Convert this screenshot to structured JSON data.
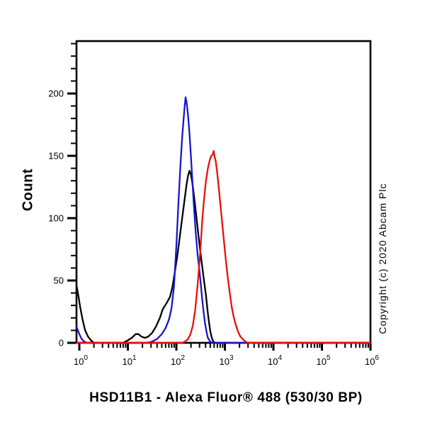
{
  "figure": {
    "background": "#ffffff"
  },
  "chart_data": {
    "type": "line",
    "subtype": "flow-cytometry-histogram-overlay",
    "title": "HSD11B1 - Alexa Fluor® 488 (530/30 BP)",
    "ylabel": "Count",
    "copyright": "Copyright (c) 2020 Abcam Plc",
    "grid": false,
    "legend": null,
    "x_axis": {
      "scale": "log10",
      "tick_base": "10",
      "tick_exponents": [
        0,
        1,
        2,
        3,
        4,
        5,
        6
      ],
      "minor_tick_multiples": [
        2,
        3,
        4,
        5,
        6,
        7,
        8,
        9
      ],
      "xlim_log10": [
        -0.058,
        6
      ]
    },
    "y_axis": {
      "ticks_major": [
        0,
        50,
        100,
        150,
        200
      ],
      "minor_step": 10,
      "ylim": [
        0,
        242
      ]
    },
    "series": [
      {
        "name": "black",
        "color": "#000000",
        "points_log10x_count": [
          [
            -0.058,
            46
          ],
          [
            -0.02,
            38
          ],
          [
            0.02,
            28
          ],
          [
            0.07,
            18
          ],
          [
            0.12,
            10
          ],
          [
            0.18,
            5
          ],
          [
            0.24,
            2
          ],
          [
            0.3,
            0
          ],
          [
            0.9,
            0
          ],
          [
            1.0,
            2
          ],
          [
            1.08,
            4
          ],
          [
            1.16,
            7
          ],
          [
            1.22,
            7
          ],
          [
            1.28,
            5
          ],
          [
            1.35,
            4
          ],
          [
            1.42,
            5
          ],
          [
            1.5,
            8
          ],
          [
            1.58,
            13
          ],
          [
            1.66,
            20
          ],
          [
            1.72,
            27
          ],
          [
            1.8,
            32
          ],
          [
            1.87,
            37
          ],
          [
            1.92,
            45
          ],
          [
            1.97,
            57
          ],
          [
            2.02,
            70
          ],
          [
            2.07,
            85
          ],
          [
            2.12,
            100
          ],
          [
            2.17,
            115
          ],
          [
            2.21,
            127
          ],
          [
            2.24,
            134
          ],
          [
            2.27,
            138
          ],
          [
            2.3,
            135
          ],
          [
            2.33,
            128
          ],
          [
            2.37,
            116
          ],
          [
            2.41,
            102
          ],
          [
            2.45,
            88
          ],
          [
            2.49,
            74
          ],
          [
            2.53,
            62
          ],
          [
            2.57,
            50
          ],
          [
            2.61,
            38
          ],
          [
            2.64,
            27
          ],
          [
            2.67,
            17
          ],
          [
            2.7,
            9
          ],
          [
            2.73,
            4
          ],
          [
            2.76,
            1
          ],
          [
            2.8,
            0
          ],
          [
            6.0,
            0
          ]
        ]
      },
      {
        "name": "blue",
        "color": "#1a15cd",
        "points_log10x_count": [
          [
            -0.058,
            13
          ],
          [
            0.0,
            7
          ],
          [
            0.05,
            3
          ],
          [
            0.1,
            1
          ],
          [
            0.16,
            0
          ],
          [
            1.4,
            0
          ],
          [
            1.5,
            1
          ],
          [
            1.6,
            3
          ],
          [
            1.7,
            7
          ],
          [
            1.78,
            12
          ],
          [
            1.85,
            19
          ],
          [
            1.9,
            28
          ],
          [
            1.95,
            45
          ],
          [
            2.0,
            78
          ],
          [
            2.04,
            110
          ],
          [
            2.08,
            140
          ],
          [
            2.12,
            165
          ],
          [
            2.15,
            180
          ],
          [
            2.17,
            189
          ],
          [
            2.19,
            197
          ],
          [
            2.21,
            193
          ],
          [
            2.24,
            183
          ],
          [
            2.27,
            168
          ],
          [
            2.3,
            150
          ],
          [
            2.33,
            130
          ],
          [
            2.36,
            110
          ],
          [
            2.4,
            88
          ],
          [
            2.44,
            70
          ],
          [
            2.47,
            60
          ],
          [
            2.5,
            48
          ],
          [
            2.53,
            36
          ],
          [
            2.56,
            25
          ],
          [
            2.59,
            16
          ],
          [
            2.62,
            9
          ],
          [
            2.65,
            4
          ],
          [
            2.68,
            2
          ],
          [
            2.72,
            0
          ],
          [
            6.0,
            0
          ]
        ]
      },
      {
        "name": "red",
        "color": "#e8100a",
        "points_log10x_count": [
          [
            -0.058,
            0
          ],
          [
            2.12,
            0
          ],
          [
            2.18,
            1
          ],
          [
            2.24,
            3
          ],
          [
            2.29,
            7
          ],
          [
            2.34,
            14
          ],
          [
            2.39,
            27
          ],
          [
            2.44,
            47
          ],
          [
            2.49,
            72
          ],
          [
            2.53,
            96
          ],
          [
            2.57,
            115
          ],
          [
            2.61,
            130
          ],
          [
            2.65,
            140
          ],
          [
            2.69,
            147
          ],
          [
            2.72,
            150
          ],
          [
            2.75,
            151
          ],
          [
            2.77,
            154
          ],
          [
            2.79,
            149
          ],
          [
            2.81,
            146
          ],
          [
            2.84,
            137
          ],
          [
            2.87,
            126
          ],
          [
            2.9,
            114
          ],
          [
            2.94,
            98
          ],
          [
            2.98,
            82
          ],
          [
            3.02,
            66
          ],
          [
            3.06,
            52
          ],
          [
            3.1,
            40
          ],
          [
            3.14,
            29
          ],
          [
            3.18,
            21
          ],
          [
            3.22,
            15
          ],
          [
            3.27,
            9
          ],
          [
            3.32,
            5
          ],
          [
            3.37,
            3
          ],
          [
            3.42,
            1
          ],
          [
            3.48,
            0
          ],
          [
            6.0,
            0
          ]
        ]
      }
    ]
  }
}
